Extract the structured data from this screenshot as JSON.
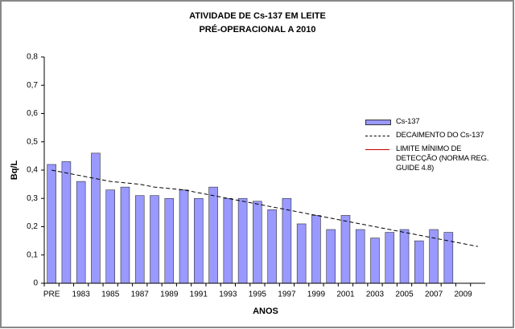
{
  "chart_data": {
    "type": "bar",
    "title": "ATIVIDADE DE Cs-137 EM LEITE",
    "subtitle": "PRÉ-OPERACIONAL A 2010",
    "x_label": "ANOS",
    "y_label": "Bq/L",
    "categories": [
      "PRE",
      null,
      "1983",
      null,
      "1985",
      null,
      "1987",
      null,
      "1989",
      null,
      "1991",
      null,
      "1993",
      null,
      "1995",
      null,
      "1997",
      null,
      "1999",
      null,
      "2001",
      null,
      "2003",
      null,
      "2005",
      null,
      "2007",
      null,
      "2009",
      null
    ],
    "series": [
      {
        "name": "Cs-137",
        "type": "bar",
        "color": "#9999ff",
        "values": [
          0.42,
          0.43,
          0.36,
          0.46,
          0.33,
          0.34,
          0.31,
          0.31,
          0.3,
          0.33,
          0.3,
          0.34,
          0.3,
          0.3,
          0.29,
          0.26,
          0.3,
          0.21,
          0.24,
          0.19,
          0.24,
          0.19,
          0.16,
          0.18,
          0.19,
          0.15,
          0.19,
          0.18,
          null,
          null
        ]
      },
      {
        "name": "DECAIMENTO DO Cs-137",
        "type": "line",
        "dashed": true,
        "color": "#000000",
        "values": [
          0.4,
          0.39,
          0.38,
          0.37,
          0.36,
          0.355,
          0.35,
          0.34,
          0.335,
          0.33,
          0.32,
          0.31,
          0.3,
          0.29,
          0.28,
          0.27,
          0.26,
          0.25,
          0.24,
          0.23,
          0.22,
          0.21,
          0.2,
          0.19,
          0.18,
          0.17,
          0.16,
          0.15,
          0.14,
          0.13
        ]
      },
      {
        "name": "LIMITE MÍNIMO DE DETECÇÃO (NORMA REG. GUIDE 4.8)",
        "type": "line",
        "dashed": false,
        "color": "#c00000",
        "values": [
          null,
          null,
          null,
          null,
          null,
          null,
          null,
          null,
          null,
          null,
          null,
          null,
          null,
          null,
          null,
          null,
          null,
          null,
          null,
          null,
          null,
          null,
          null,
          null,
          null,
          null,
          null,
          null,
          null,
          null
        ]
      }
    ],
    "ylim": [
      0,
      0.8
    ],
    "yticks": [
      0,
      {
        "value": 0.1,
        "label": "0,1"
      },
      {
        "value": 0.2,
        "label": "0,2"
      },
      {
        "value": 0.3,
        "label": "0,3"
      },
      {
        "value": 0.4,
        "label": "0,4"
      },
      {
        "value": 0.5,
        "label": "0,5"
      },
      {
        "value": 0.6,
        "label": "0,6"
      },
      {
        "value": 0.7,
        "label": "0,7"
      },
      {
        "value": 0.8,
        "label": "0,8"
      }
    ],
    "grid": false,
    "legend": "right"
  }
}
